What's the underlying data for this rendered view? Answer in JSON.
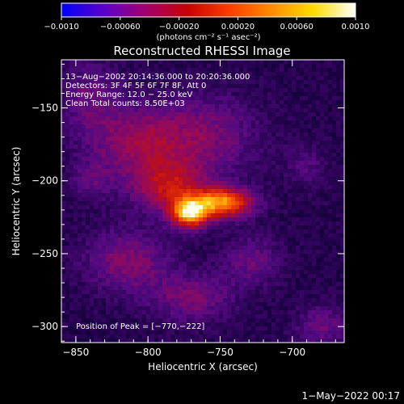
{
  "chart_data": {
    "type": "heatmap",
    "title": "Reconstructed RHESSI Image",
    "xlabel": "Heliocentric X (arcsec)",
    "ylabel": "Heliocentric Y (arcsec)",
    "xlim": [
      -860,
      -664
    ],
    "ylim": [
      -311,
      -117
    ],
    "x_ticks": [
      {
        "value": -850,
        "label": "−850"
      },
      {
        "value": -800,
        "label": "−800"
      },
      {
        "value": -750,
        "label": "−750"
      },
      {
        "value": -700,
        "label": "−700"
      }
    ],
    "y_ticks": [
      {
        "value": -150,
        "label": "−150"
      },
      {
        "value": -200,
        "label": "−200"
      },
      {
        "value": -250,
        "label": "−250"
      },
      {
        "value": -300,
        "label": "−300"
      }
    ],
    "colorbar": {
      "range": [
        -0.001,
        0.001
      ],
      "ticks": [
        {
          "value": -0.001,
          "label": "−0.0010"
        },
        {
          "value": -0.0006,
          "label": "−0.00060"
        },
        {
          "value": -0.0002,
          "label": "−0.00020"
        },
        {
          "value": 0.0002,
          "label": "0.00020"
        },
        {
          "value": 0.0006,
          "label": "0.00060"
        },
        {
          "value": 0.001,
          "label": "0.0010"
        }
      ],
      "unit_label": "(photons cm⁻² s⁻¹ asec⁻²)",
      "colors": [
        "#0000ff",
        "#5a00c8",
        "#a0006e",
        "#c80000",
        "#ff3c00",
        "#ff8c00",
        "#ffdc00",
        "#ffffff"
      ]
    },
    "grid": false,
    "annotations": [
      "13−Aug−2002 20:14:36.000 to 20:20:36.000",
      "Detectors: 3F 4F 5F 6F 7F 8F, Att 0",
      "Energy Range: 12.0 − 25.0 keV",
      "Clean     Total counts: 8.50E+03"
    ],
    "peak_label": "Position of Peak = [−770,−222]",
    "peak": [
      -770,
      -222
    ],
    "components": [
      {
        "x": -771,
        "y": -222,
        "sx": 9,
        "sy": 7,
        "amp": 0.00062
      },
      {
        "x": -748,
        "y": -215,
        "sx": 14,
        "sy": 7,
        "amp": 0.00055
      },
      {
        "x": -785,
        "y": -205,
        "sx": 18,
        "sy": 12,
        "amp": 0.00028
      },
      {
        "x": -805,
        "y": -175,
        "sx": 22,
        "sy": 18,
        "amp": 0.00022
      },
      {
        "x": -760,
        "y": -170,
        "sx": 25,
        "sy": 20,
        "amp": 0.00018
      },
      {
        "x": -815,
        "y": -255,
        "sx": 20,
        "sy": 15,
        "amp": 0.0002
      },
      {
        "x": -770,
        "y": -280,
        "sx": 20,
        "sy": 12,
        "amp": 0.00018
      },
      {
        "x": -840,
        "y": -145,
        "sx": 15,
        "sy": 20,
        "amp": 0.00014
      },
      {
        "x": -840,
        "y": -200,
        "sx": 10,
        "sy": 10,
        "amp": 0.00012
      },
      {
        "x": -728,
        "y": -255,
        "sx": 14,
        "sy": 12,
        "amp": 0.00015
      },
      {
        "x": -680,
        "y": -300,
        "sx": 12,
        "sy": 10,
        "amp": 0.00016
      },
      {
        "x": -690,
        "y": -190,
        "sx": 10,
        "sy": 10,
        "amp": 0.0001
      }
    ]
  },
  "footer": {
    "timestamp": "1−May−2022 00:17"
  }
}
